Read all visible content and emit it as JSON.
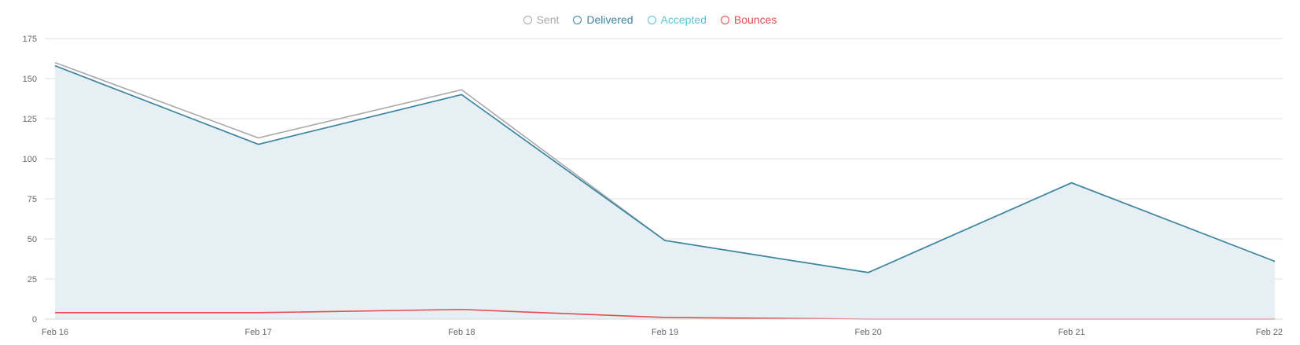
{
  "chart_data": {
    "type": "line",
    "categories": [
      "Feb 16",
      "Feb 17",
      "Feb 18",
      "Feb 19",
      "Feb 20",
      "Feb 21",
      "Feb 22"
    ],
    "series": [
      {
        "name": "Sent",
        "color": "#a7a9ac",
        "values": [
          160,
          113,
          143,
          49,
          29,
          85,
          36
        ]
      },
      {
        "name": "Delivered",
        "color": "#41839f",
        "values": [
          158,
          109,
          140,
          49,
          29,
          85,
          36
        ],
        "fill": "#e6eff4"
      },
      {
        "name": "Accepted",
        "color": "#5bc4d6",
        "values": [
          158,
          109,
          140,
          49,
          29,
          85,
          36
        ]
      },
      {
        "name": "Bounces",
        "color": "#e84b4b",
        "values": [
          4,
          4,
          6,
          1,
          0,
          0,
          0
        ]
      }
    ],
    "ylim": [
      0,
      175
    ],
    "yticks": [
      "0",
      "25",
      "50",
      "75",
      "100",
      "125",
      "150",
      "175"
    ],
    "grid": true,
    "legend_position": "top-center"
  }
}
